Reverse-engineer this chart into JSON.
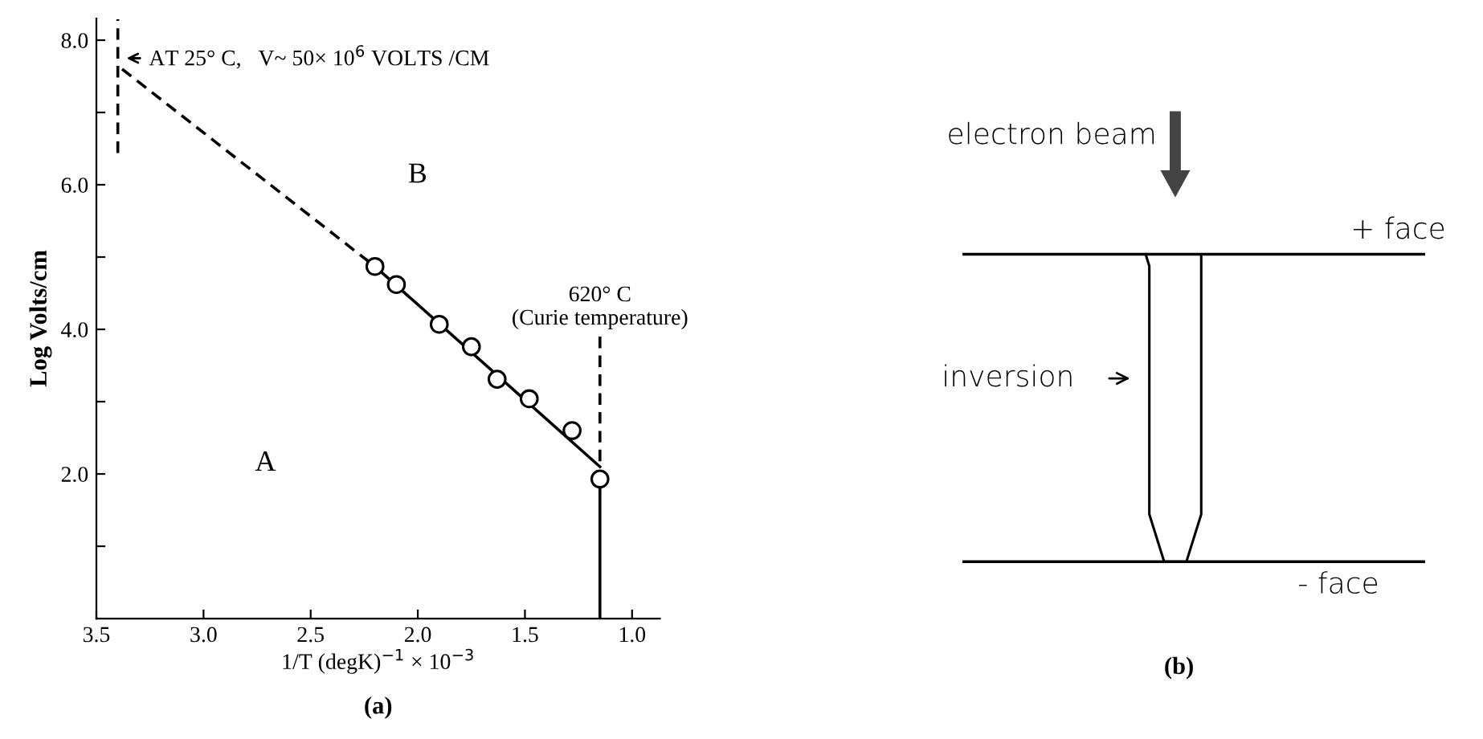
{
  "chart_data": [
    {
      "type": "scatter",
      "xlabel": "1/T (degK)$^{−1}$ × 10$^{−3}$",
      "ylabel": "Log Volts/cm",
      "xlim": [
        3.5,
        0.87
      ],
      "ylim": [
        0,
        8.3
      ],
      "xticks": [
        {
          "value": 3.5,
          "label": "3.5"
        },
        {
          "value": 3.0,
          "label": "3.0"
        },
        {
          "value": 2.5,
          "label": "2.5"
        },
        {
          "value": 2.0,
          "label": "2.0"
        },
        {
          "value": 1.5,
          "label": "1.5"
        },
        {
          "value": 1.0,
          "label": "1.0"
        }
      ],
      "yticks": [
        {
          "value": 1,
          "label": null
        },
        {
          "value": 2,
          "label": "2.0"
        },
        {
          "value": 3,
          "label": null
        },
        {
          "value": 4,
          "label": "4.0"
        },
        {
          "value": 5,
          "label": null
        },
        {
          "value": 6,
          "label": "6.0"
        },
        {
          "value": 7,
          "label": null
        },
        {
          "value": 8,
          "label": "8.0"
        }
      ],
      "grid": false,
      "series": [
        {
          "type": "scatter",
          "marker": "circle",
          "color": "#000000",
          "x": [
            2.2,
            2.1,
            1.9,
            1.75,
            1.63,
            1.48,
            1.28,
            1.15
          ],
          "values": [
            4.87,
            4.62,
            4.07,
            3.76,
            3.31,
            3.04,
            2.6,
            1.93
          ]
        },
        {
          "type": "line",
          "line_style": "solid",
          "color": "#000000",
          "x": [
            2.2,
            1.15
          ],
          "values": [
            4.87,
            2.1
          ]
        },
        {
          "type": "line",
          "line_style": "dashed",
          "color": "#000000",
          "x": [
            3.38,
            2.2
          ],
          "values": [
            7.6,
            4.87
          ]
        },
        {
          "type": "line",
          "line_style": "dashed",
          "color": "#000000",
          "x": [
            3.4,
            3.4
          ],
          "values": [
            6.44,
            8.29
          ]
        },
        {
          "type": "line",
          "line_style": "solid",
          "color": "#000000",
          "x": [
            1.15,
            1.15
          ],
          "values": [
            0,
            1.93
          ]
        },
        {
          "type": "line",
          "line_style": "dashed",
          "color": "#000000",
          "x": [
            1.15,
            1.15
          ],
          "values": [
            3.9,
            2.1
          ]
        }
      ],
      "annotations": [
        {
          "text": "AT 25° C,   V~ 50× 10$^{6}$ VOLTS /CM",
          "x": 3.38,
          "y": 7.75
        },
        {
          "text": "620° C\n(Curie temperature)",
          "x": 1.15,
          "y": 3.9
        },
        "A",
        "B",
        "(a)"
      ]
    },
    {
      "type": "other",
      "annotations": [
        "electron beam",
        "+ face",
        "inversion",
        "- face",
        "(b)"
      ]
    }
  ]
}
